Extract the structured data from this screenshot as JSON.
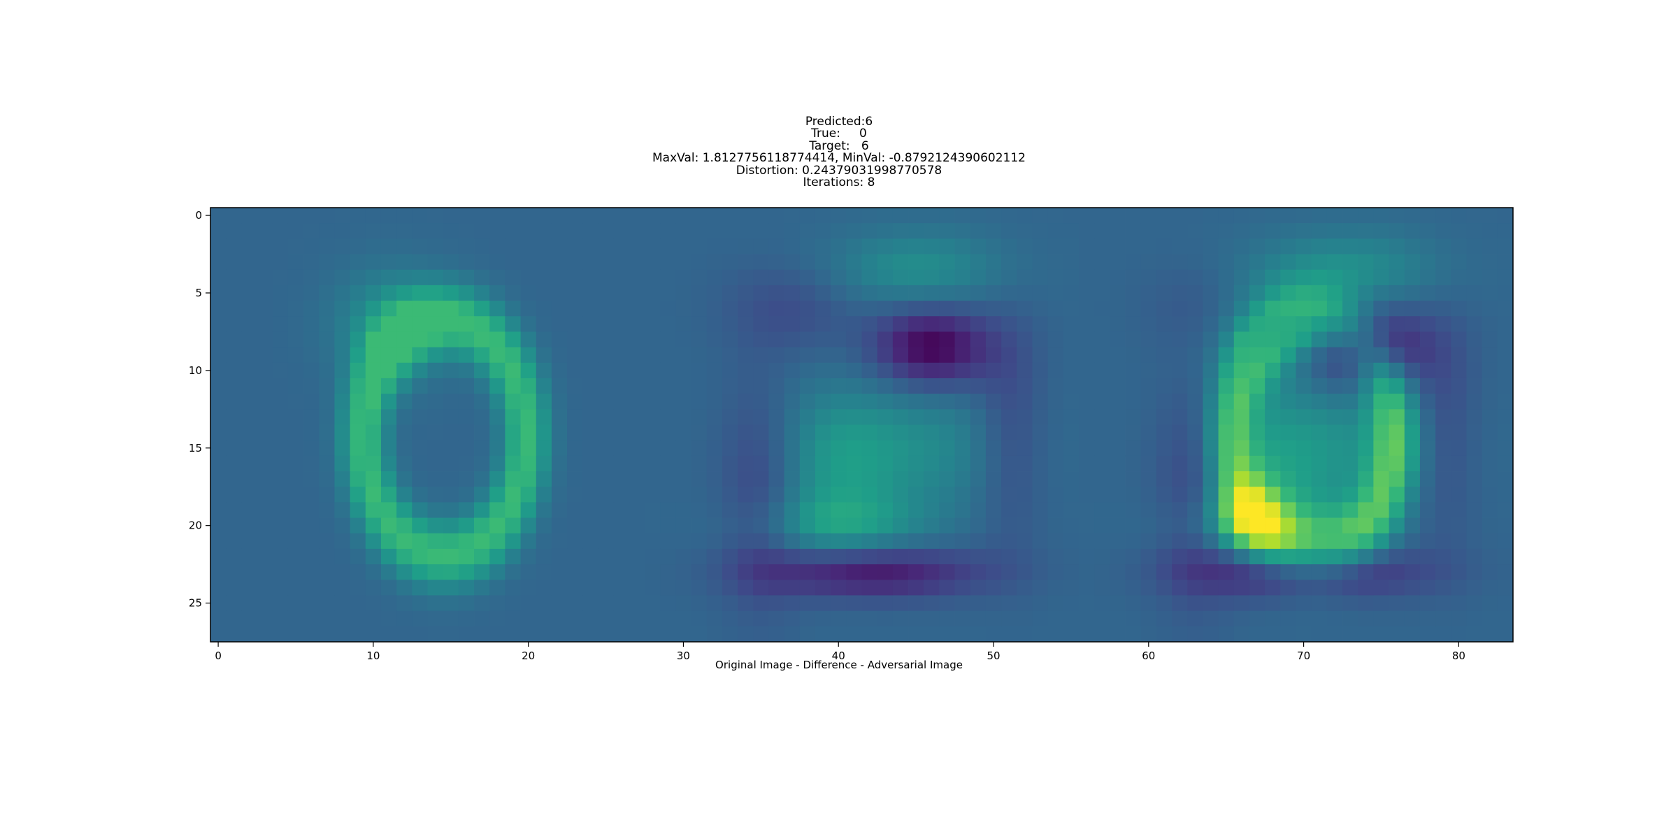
{
  "title_lines": [
    "Predicted:6",
    "True:     0",
    "Target:   6",
    "MaxVal: 1.8127756118774414, MinVal: -0.8792124390602112",
    "Distortion: 0.24379031998770578",
    "Iterations: 8"
  ],
  "chart_data": {
    "type": "heatmap",
    "colormap": "viridis",
    "title": "Predicted:6\nTrue:     0\nTarget:   6\nMaxVal: 1.8127756118774414, MinVal: -0.8792124390602112\nDistortion: 0.24379031998770578\nIterations: 8",
    "xlabel": "Original Image - Difference - Adversarial Image",
    "ylabel": "",
    "x_ticks": [
      0,
      10,
      20,
      30,
      40,
      50,
      60,
      70,
      80
    ],
    "y_ticks": [
      0,
      5,
      10,
      15,
      20,
      25
    ],
    "xlim": [
      -0.5,
      83.5
    ],
    "ylim": [
      27.5,
      -0.5
    ],
    "grid": false,
    "n_rows": 28,
    "n_cols": 84,
    "value_range": [
      -0.8792124390602112,
      1.8127756118774414
    ],
    "panels": [
      "Original Image",
      "Difference",
      "Adversarial Image"
    ]
  }
}
